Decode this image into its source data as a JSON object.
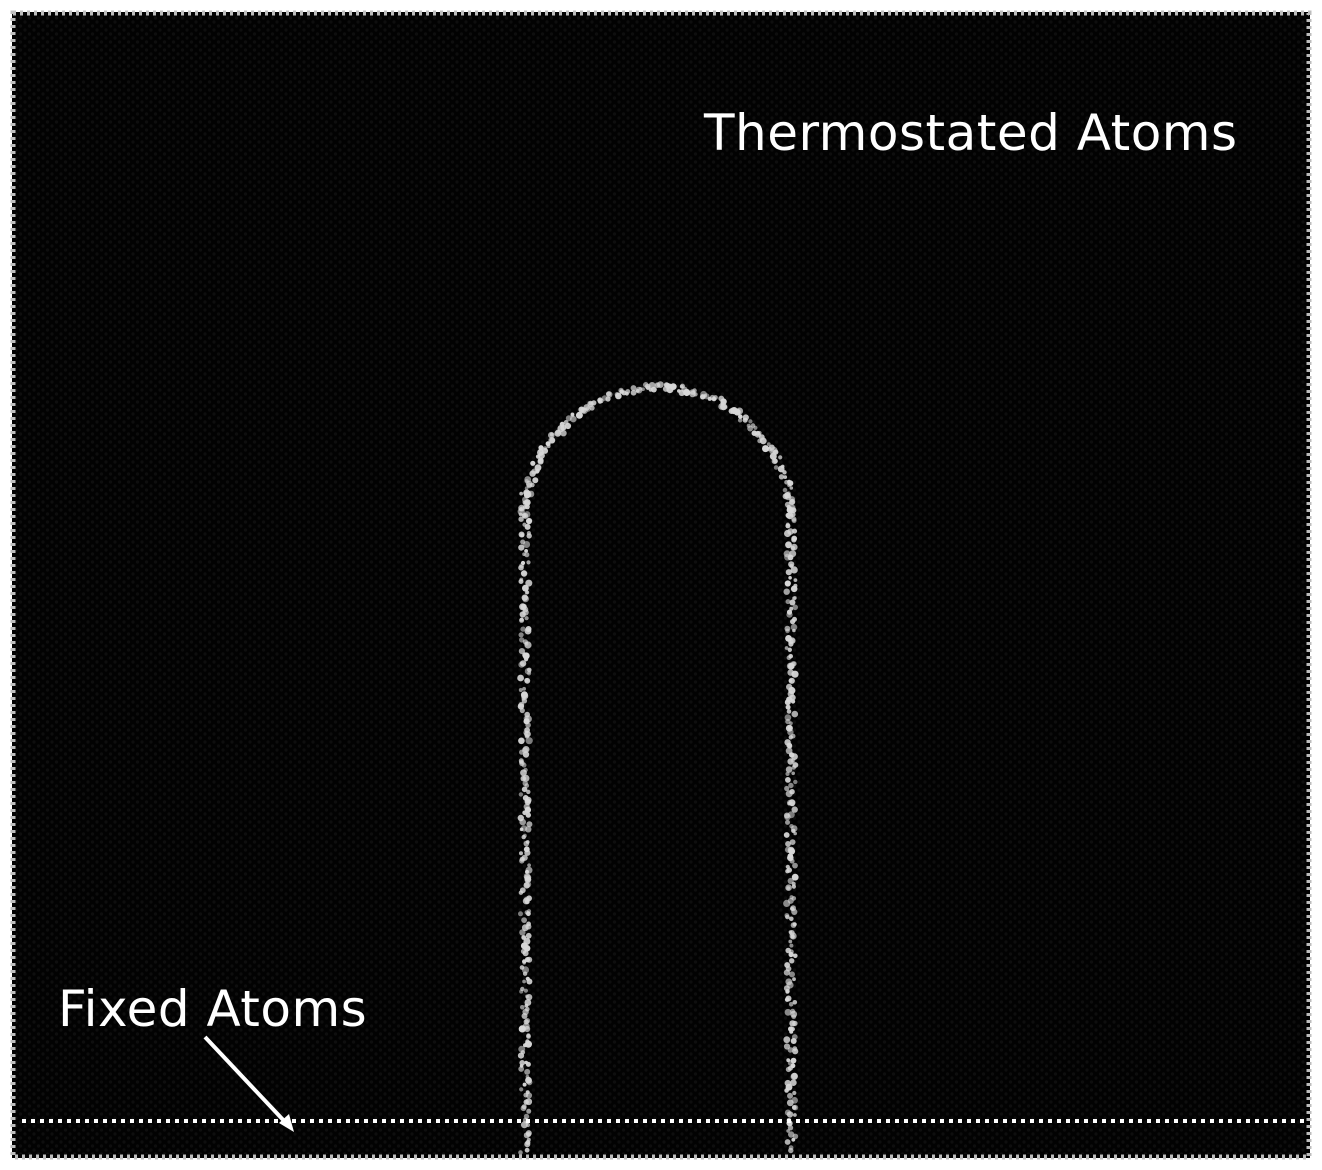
{
  "labels": {
    "thermostated": "Thermostated Atoms",
    "fixed": "Fixed Atoms"
  },
  "colors": {
    "background": "#020202",
    "boundary_atoms": "#d8d8d8",
    "lattice_atoms": "#0d0d0d",
    "text": "#ffffff",
    "frame_atoms": "#bfbfbf"
  }
}
